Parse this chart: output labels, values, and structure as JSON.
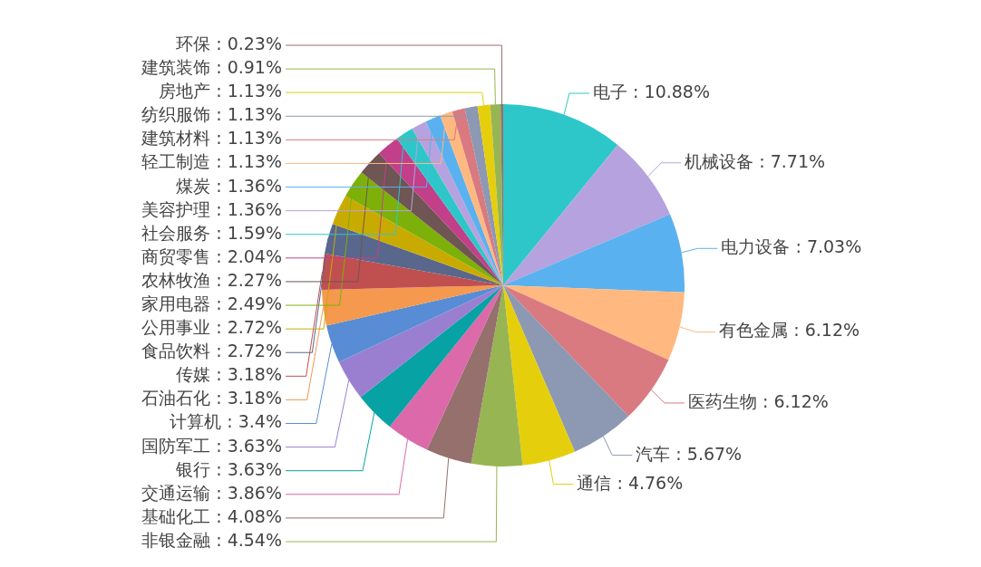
{
  "chart_data": {
    "type": "pie",
    "categories": [
      "电子",
      "机械设备",
      "电力设备",
      "有色金属",
      "医药生物",
      "汽车",
      "通信",
      "非银金融",
      "基础化工",
      "交通运输",
      "银行",
      "国防军工",
      "计算机",
      "石油石化",
      "传媒",
      "食品饮料",
      "公用事业",
      "家用电器",
      "农林牧渔",
      "商贸零售",
      "社会服务",
      "美容护理",
      "煤炭",
      "轻工制造",
      "建筑材料",
      "纺织服饰",
      "房地产",
      "建筑装饰",
      "环保"
    ],
    "values": [
      10.88,
      7.71,
      7.03,
      6.12,
      6.12,
      5.67,
      4.76,
      4.54,
      4.08,
      3.86,
      3.63,
      3.63,
      3.4,
      3.18,
      3.18,
      2.72,
      2.72,
      2.49,
      2.27,
      2.04,
      1.59,
      1.36,
      1.36,
      1.13,
      1.13,
      1.13,
      1.13,
      0.91,
      0.23
    ],
    "value_labels": [
      "10.88%",
      "7.71%",
      "7.03%",
      "6.12%",
      "6.12%",
      "5.67%",
      "4.76%",
      "4.54%",
      "4.08%",
      "3.86%",
      "3.63%",
      "3.63%",
      "3.4%",
      "3.18%",
      "3.18%",
      "2.72%",
      "2.72%",
      "2.49%",
      "2.27%",
      "2.04%",
      "1.59%",
      "1.36%",
      "1.36%",
      "1.13%",
      "1.13%",
      "1.13%",
      "1.13%",
      "0.91%",
      "0.23%"
    ],
    "colors": [
      "#2ec7c9",
      "#b6a2de",
      "#5ab1ef",
      "#ffb980",
      "#d87a80",
      "#8d98b3",
      "#e5cf0d",
      "#97b552",
      "#95706d",
      "#dc69aa",
      "#07a2a4",
      "#9a7fd1",
      "#588dd5",
      "#f5994e",
      "#c05050",
      "#59678c",
      "#c9ab00",
      "#7eb00a",
      "#6f5553",
      "#c14089",
      "#2ec7c9",
      "#b6a2de",
      "#5ab1ef",
      "#ffb980",
      "#d87a80",
      "#8d98b3",
      "#e5cf0d",
      "#97b552",
      "#95706d"
    ]
  }
}
